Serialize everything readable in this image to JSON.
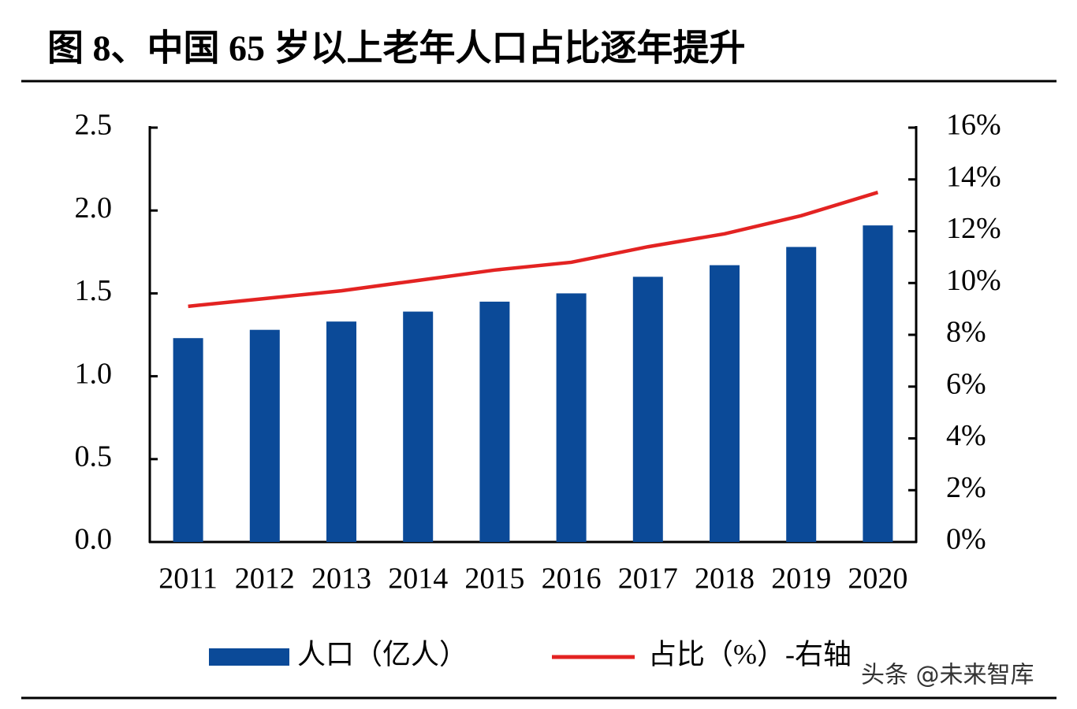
{
  "chart_data": {
    "type": "bar",
    "title": "图 8、中国 65 岁以上老年人口占比逐年提升",
    "categories": [
      "2011",
      "2012",
      "2013",
      "2014",
      "2015",
      "2016",
      "2017",
      "2018",
      "2019",
      "2020"
    ],
    "series": [
      {
        "name": "人口（亿人）",
        "type": "bar",
        "color": "#0b4a98",
        "values": [
          1.23,
          1.28,
          1.33,
          1.39,
          1.45,
          1.5,
          1.6,
          1.67,
          1.78,
          1.91
        ]
      },
      {
        "name": "占比（%）-右轴",
        "type": "line",
        "axis": "y2",
        "color": "#e32322",
        "values": [
          9.1,
          9.4,
          9.7,
          10.1,
          10.5,
          10.8,
          11.4,
          11.9,
          12.6,
          13.5
        ]
      }
    ],
    "ylim": [
      0,
      2.5
    ],
    "yticks": [
      {
        "value": 0,
        "label": "0.0"
      },
      0.5,
      {
        "value": 1,
        "label": "1.0"
      },
      1.5,
      {
        "value": 2,
        "label": "2.0"
      },
      2.5
    ],
    "y2lim": [
      0,
      16
    ],
    "y2ticks": [
      {
        "value": 0,
        "label": "0%"
      },
      {
        "value": 2,
        "label": "2%"
      },
      {
        "value": 4,
        "label": "4%"
      },
      {
        "value": 6,
        "label": "6%"
      },
      {
        "value": 8,
        "label": "8%"
      },
      {
        "value": 10,
        "label": "10%"
      },
      {
        "value": 12,
        "label": "12%"
      },
      {
        "value": 14,
        "label": "14%"
      },
      {
        "value": 16,
        "label": "16%"
      }
    ],
    "watermark": "头条 @未来智库"
  }
}
